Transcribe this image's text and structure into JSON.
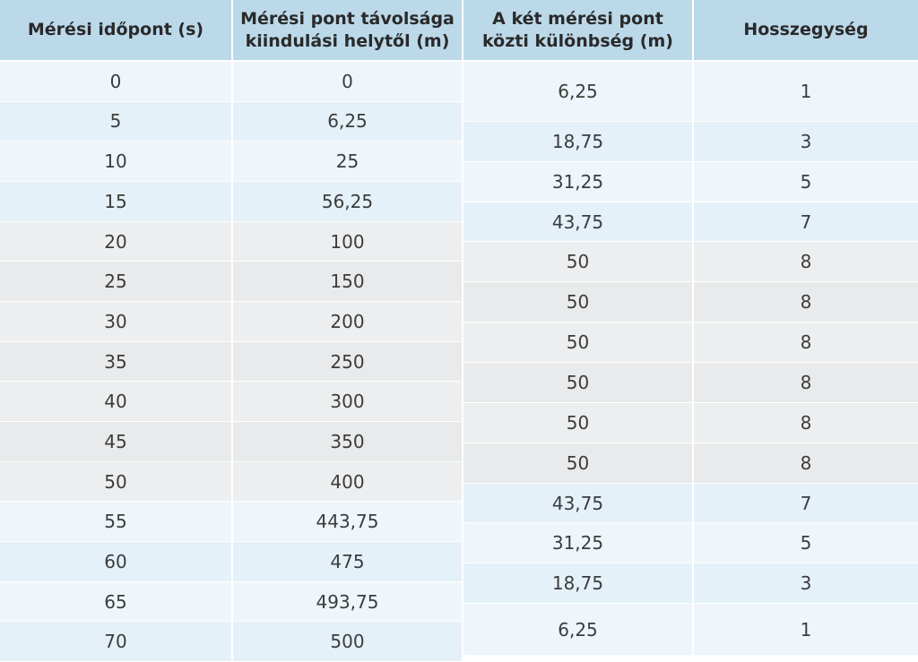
{
  "headers": [
    {
      "lines": [
        "Mérési időpont (s)"
      ]
    },
    {
      "lines": [
        "Mérési pont távolsága",
        "kiindulási helytől (m)"
      ]
    },
    {
      "lines": [
        "A két mérési pont",
        "közti különbség (m)"
      ]
    },
    {
      "lines": [
        "Hosszegység"
      ]
    }
  ],
  "left_rows": [
    {
      "time": "0",
      "distance": "0"
    },
    {
      "time": "5",
      "distance": "6,25"
    },
    {
      "time": "10",
      "distance": "25"
    },
    {
      "time": "15",
      "distance": "56,25"
    },
    {
      "time": "20",
      "distance": "100"
    },
    {
      "time": "25",
      "distance": "150"
    },
    {
      "time": "30",
      "distance": "200"
    },
    {
      "time": "35",
      "distance": "250"
    },
    {
      "time": "40",
      "distance": "300"
    },
    {
      "time": "45",
      "distance": "350"
    },
    {
      "time": "50",
      "distance": "400"
    },
    {
      "time": "55",
      "distance": "443,75"
    },
    {
      "time": "60",
      "distance": "475"
    },
    {
      "time": "65",
      "distance": "493,75"
    },
    {
      "time": "70",
      "distance": "500"
    }
  ],
  "right_rows": [
    {
      "diff": "6,25",
      "unit": "1"
    },
    {
      "diff": "18,75",
      "unit": "3"
    },
    {
      "diff": "31,25",
      "unit": "5"
    },
    {
      "diff": "43,75",
      "unit": "7"
    },
    {
      "diff": "50",
      "unit": "8"
    },
    {
      "diff": "50",
      "unit": "8"
    },
    {
      "diff": "50",
      "unit": "8"
    },
    {
      "diff": "50",
      "unit": "8"
    },
    {
      "diff": "50",
      "unit": "8"
    },
    {
      "diff": "50",
      "unit": "8"
    },
    {
      "diff": "43,75",
      "unit": "7"
    },
    {
      "diff": "31,25",
      "unit": "5"
    },
    {
      "diff": "18,75",
      "unit": "3"
    },
    {
      "diff": "6,25",
      "unit": "1"
    }
  ]
}
